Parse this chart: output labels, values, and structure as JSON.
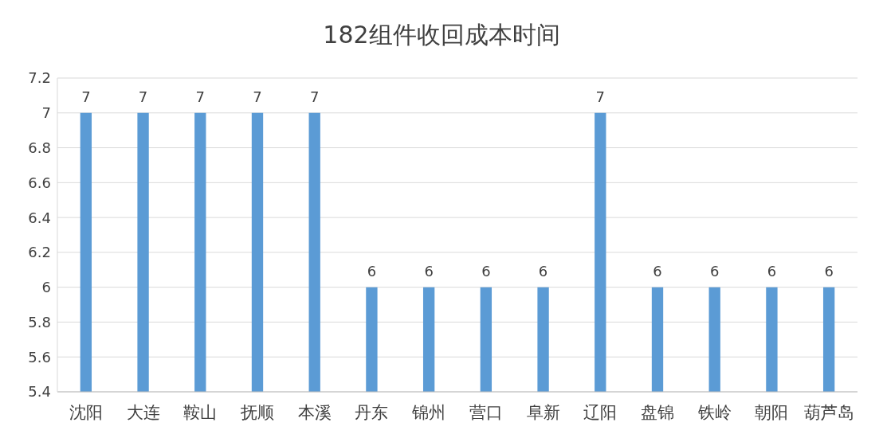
{
  "chart_data": {
    "type": "bar",
    "title": "182组件收回成本时间",
    "categories": [
      "沈阳",
      "大连",
      "鞍山",
      "抚顺",
      "本溪",
      "丹东",
      "锦州",
      "营口",
      "阜新",
      "辽阳",
      "盘锦",
      "铁岭",
      "朝阳",
      "葫芦岛"
    ],
    "values": [
      7,
      7,
      7,
      7,
      7,
      6,
      6,
      6,
      6,
      7,
      6,
      6,
      6,
      6
    ],
    "color": "#5b9bd5",
    "ylim": [
      5.4,
      7.2
    ],
    "yticks": [
      5.4,
      5.6,
      5.8,
      6,
      6.2,
      6.4,
      6.6,
      6.8,
      7,
      7.2
    ],
    "grid": "y",
    "data_labels": true
  }
}
